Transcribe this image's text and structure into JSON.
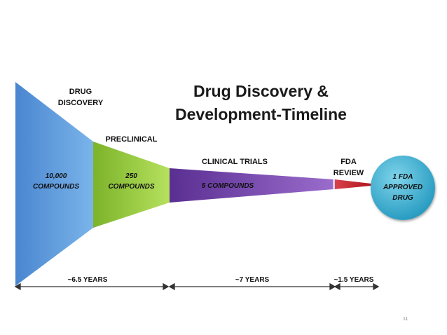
{
  "title": {
    "line1": "Drug Discovery &",
    "line2": "Development-Timeline"
  },
  "stages": {
    "discovery": {
      "label_line1": "DRUG",
      "label_line2": "DISCOVERY",
      "compounds_line1": "10,000",
      "compounds_line2": "COMPOUNDS",
      "color": "#5b9bd5"
    },
    "preclinical": {
      "label": "PRECLINICAL",
      "compounds_line1": "250",
      "compounds_line2": "COMPOUNDS",
      "color": "#8fc43a"
    },
    "clinical": {
      "label": "CLINICAL TRIALS",
      "compounds": "5 COMPOUNDS",
      "color": "#7e4fb0"
    },
    "fda": {
      "label_line1": "FDA",
      "label_line2": "REVIEW",
      "color": "#c0262d"
    },
    "approved": {
      "line1": "1 FDA",
      "line2": "APPROVED",
      "line3": "DRUG",
      "color": "#2d9fc4"
    }
  },
  "durations": {
    "first": "~6.5 YEARS",
    "second": "~7 YEARS",
    "third": "~1.5 YEARS"
  },
  "page_number": "11"
}
